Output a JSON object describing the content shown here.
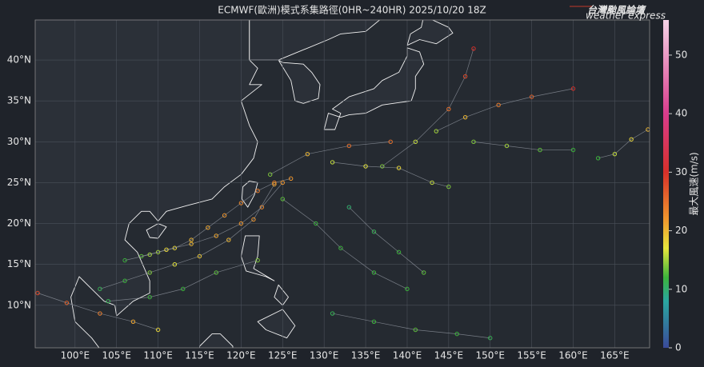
{
  "chart_data": {
    "type": "map-scatter",
    "title": "ECMWF(歐洲)模式系集路徑(0HR~240HR) 2025/10/20 18Z",
    "xlim": [
      95.2,
      169.2
    ],
    "ylim": [
      4.8,
      44.9
    ],
    "xticks": [
      {
        "value": 100,
        "label": "100°E"
      },
      {
        "value": 105,
        "label": "105°E"
      },
      {
        "value": 110,
        "label": "110°E"
      },
      {
        "value": 115,
        "label": "115°E"
      },
      {
        "value": 120,
        "label": "120°E"
      },
      {
        "value": 125,
        "label": "125°E"
      },
      {
        "value": 130,
        "label": "130°E"
      },
      {
        "value": 135,
        "label": "135°E"
      },
      {
        "value": 140,
        "label": "140°E"
      },
      {
        "value": 145,
        "label": "145°E"
      },
      {
        "value": 150,
        "label": "150°E"
      },
      {
        "value": 155,
        "label": "155°E"
      },
      {
        "value": 160,
        "label": "160°E"
      },
      {
        "value": 165,
        "label": "165°E"
      }
    ],
    "yticks": [
      {
        "value": 10,
        "label": "10°N"
      },
      {
        "value": 15,
        "label": "15°N"
      },
      {
        "value": 20,
        "label": "20°N"
      },
      {
        "value": 25,
        "label": "25°N"
      },
      {
        "value": 30,
        "label": "30°N"
      },
      {
        "value": 35,
        "label": "35°N"
      },
      {
        "value": 40,
        "label": "40°N"
      }
    ],
    "grid": true,
    "colorbar": {
      "label": "最大風速(m/s)",
      "lim": [
        0,
        56
      ],
      "ticks": [
        0,
        10,
        20,
        30,
        40,
        50
      ],
      "stops": [
        [
          0,
          "#3a4a9a"
        ],
        [
          8,
          "#2aa7a0"
        ],
        [
          12,
          "#3cb43c"
        ],
        [
          17,
          "#e6e63c"
        ],
        [
          22,
          "#f0962d"
        ],
        [
          30,
          "#d7302a"
        ],
        [
          40,
          "#d83c8c"
        ],
        [
          56,
          "#f5d2e6"
        ]
      ]
    },
    "series": [
      {
        "lon": [
          126,
          124,
          122,
          120,
          118,
          116,
          114,
          112,
          110,
          108
        ],
        "lat": [
          25.5,
          25,
          24,
          22.5,
          21,
          19.5,
          18,
          17,
          16.5,
          16
        ],
        "wind": [
          22,
          24,
          24,
          23,
          22,
          21,
          20,
          18,
          15,
          13
        ]
      },
      {
        "lon": [
          125,
          122.5,
          120,
          117,
          114,
          111,
          109,
          106
        ],
        "lat": [
          25,
          22,
          20,
          18.5,
          17.5,
          16.8,
          16.2,
          15.5
        ],
        "wind": [
          22,
          23,
          22,
          21,
          20,
          18,
          15,
          12
        ]
      },
      {
        "lon": [
          124,
          121.5,
          118.5,
          115,
          112,
          109,
          106,
          103
        ],
        "lat": [
          24.8,
          20.5,
          18,
          16,
          15,
          14,
          13,
          12
        ],
        "wind": [
          21,
          22,
          20,
          19,
          17,
          14,
          12,
          11
        ]
      },
      {
        "lon": [
          143.5,
          147,
          151,
          155,
          160
        ],
        "lat": [
          31.3,
          33,
          34.5,
          35.5,
          36.5
        ],
        "wind": [
          15,
          20,
          24,
          26,
          30
        ]
      },
      {
        "lon": [
          137,
          141,
          145,
          147,
          148
        ],
        "lat": [
          27,
          30,
          34,
          38,
          41.4
        ],
        "wind": [
          14,
          16,
          25,
          28,
          30
        ]
      },
      {
        "lon": [
          123.5,
          128,
          133,
          138
        ],
        "lat": [
          26,
          28.5,
          29.5,
          30
        ],
        "wind": [
          14,
          20,
          25,
          25
        ]
      },
      {
        "lon": [
          131,
          135,
          139,
          143,
          145
        ],
        "lat": [
          27.5,
          27,
          26.8,
          25,
          24.5
        ],
        "wind": [
          16,
          17,
          18,
          16,
          14
        ]
      },
      {
        "lon": [
          163,
          165,
          167,
          169
        ],
        "lat": [
          28,
          28.5,
          30.3,
          31.5
        ],
        "wind": [
          12,
          16,
          18,
          20
        ]
      },
      {
        "lon": [
          125,
          129,
          132,
          136,
          140
        ],
        "lat": [
          23,
          20,
          17,
          14,
          12
        ],
        "wind": [
          13,
          12,
          12,
          12,
          12
        ]
      },
      {
        "lon": [
          133,
          136,
          139,
          142
        ],
        "lat": [
          22,
          19,
          16.5,
          14
        ],
        "wind": [
          10,
          11,
          12,
          13
        ]
      },
      {
        "lon": [
          95.5,
          99,
          103,
          107,
          110
        ],
        "lat": [
          11.5,
          10.3,
          9,
          8,
          7
        ],
        "wind": [
          28,
          26,
          24,
          21,
          18
        ]
      },
      {
        "lon": [
          131,
          136,
          141,
          146,
          150
        ],
        "lat": [
          9,
          8,
          7,
          6.5,
          6
        ],
        "wind": [
          11,
          12,
          13,
          12,
          11
        ]
      },
      {
        "lon": [
          122,
          117,
          113,
          109,
          104
        ],
        "lat": [
          15.5,
          14,
          12,
          11,
          10.5
        ],
        "wind": [
          14,
          13,
          12,
          12,
          11
        ]
      },
      {
        "lon": [
          148,
          152,
          156,
          160
        ],
        "lat": [
          30,
          29.5,
          29,
          29
        ],
        "wind": [
          14,
          15,
          13,
          12
        ]
      }
    ]
  },
  "logo": {
    "title": "台灣颱風論壇",
    "subtitle": "weather express"
  }
}
